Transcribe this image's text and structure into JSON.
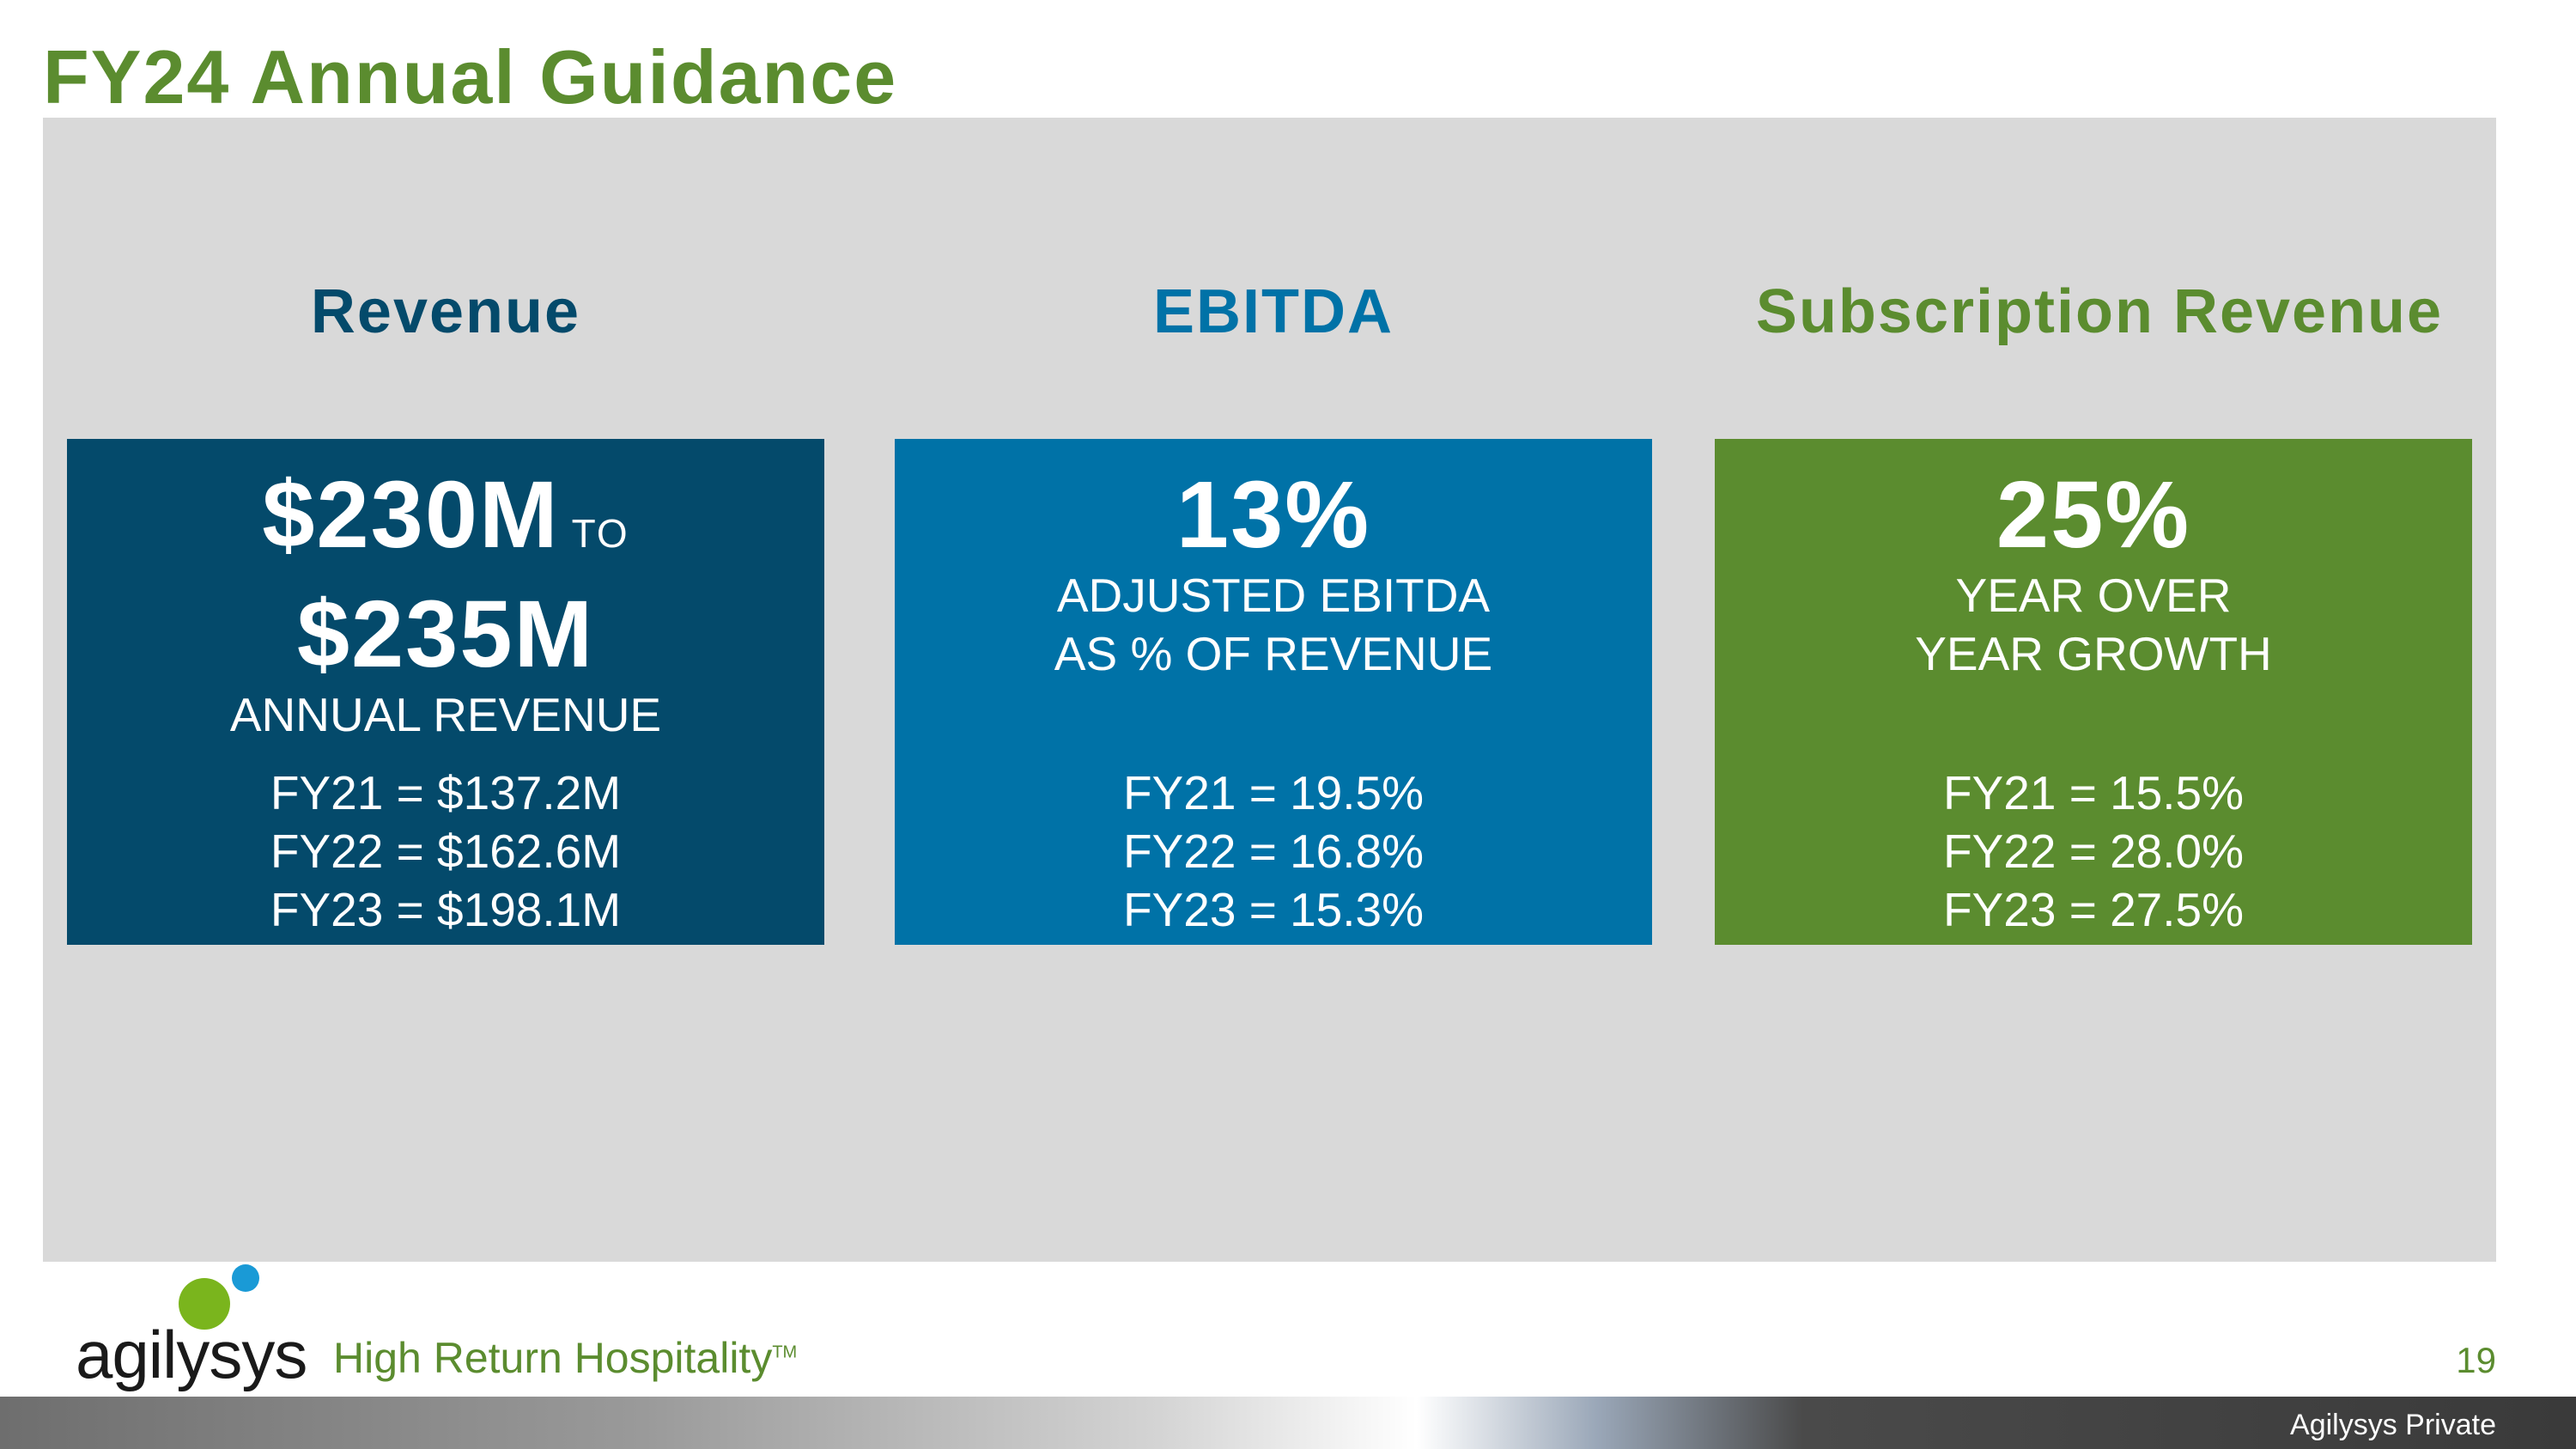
{
  "title": "FY24 Annual Guidance",
  "colors": {
    "green": "#5b8c2f",
    "navy": "#044a6b",
    "blue": "#0072a7",
    "panel": "#d9d9d9"
  },
  "columns": [
    {
      "heading": "Revenue",
      "big_line1": "$230M",
      "big_connector": "TO",
      "big_line2": "$235M",
      "sub_line1": "ANNUAL REVENUE",
      "sub_line2": "",
      "history": [
        "FY21 = $137.2M",
        "FY22 = $162.6M",
        "FY23 = $198.1M"
      ]
    },
    {
      "heading": "EBITDA",
      "big_line1": "13%",
      "sub_line1": "ADJUSTED EBITDA",
      "sub_line2": "AS % OF REVENUE",
      "history": [
        "FY21 = 19.5%",
        "FY22 = 16.8%",
        "FY23 = 15.3%"
      ]
    },
    {
      "heading": "Subscription Revenue",
      "big_line1": "25%",
      "sub_line1": "YEAR OVER",
      "sub_line2": "YEAR GROWTH",
      "history": [
        "FY21 = 15.5%",
        "FY22 = 28.0%",
        "FY23 = 27.5%"
      ]
    }
  ],
  "footer": {
    "brand": "agilysys",
    "tagline": "High Return Hospitality",
    "trademark": "TM",
    "page_number": "19",
    "classification": "Agilysys Private"
  }
}
